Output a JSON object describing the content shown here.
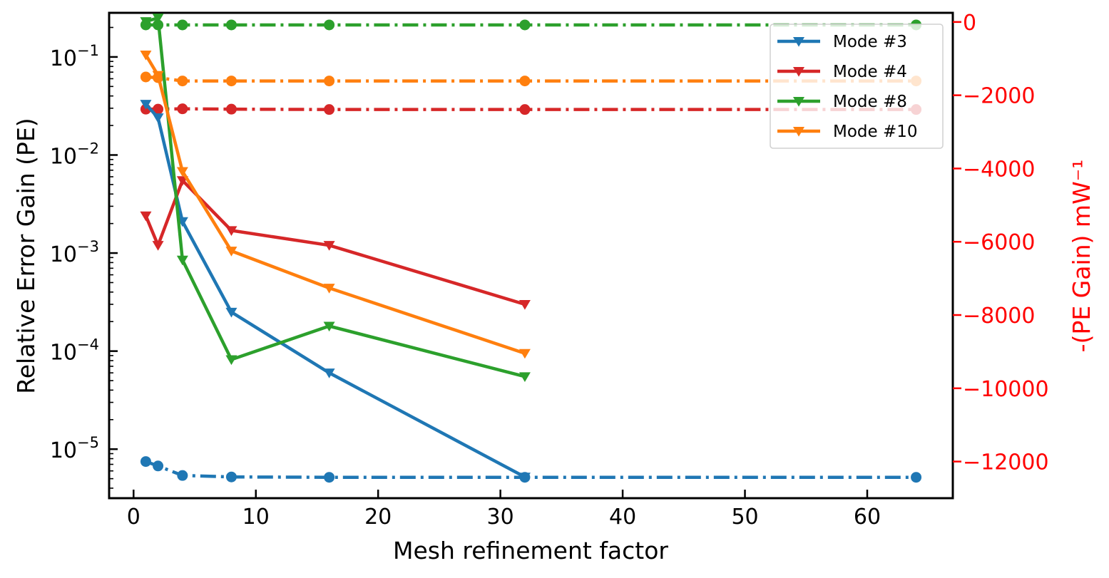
{
  "chart_data": {
    "type": "line",
    "xlabel": "Mesh refinement factor",
    "ylabel_left": "Relative Error Gain (PE)",
    "ylabel_right": "-(PE Gain)  mW⁻¹",
    "right_axis_color": "#ff0000",
    "xlim": [
      -2,
      67
    ],
    "ylim_left_log10": [
      -5.5,
      -0.55
    ],
    "ylim_right": [
      -13000,
      250
    ],
    "y_scale_left": "log",
    "x_ticks": [
      {
        "value": 0,
        "label": "0"
      },
      {
        "value": 10,
        "label": "10"
      },
      {
        "value": 20,
        "label": "20"
      },
      {
        "value": 30,
        "label": "30"
      },
      {
        "value": 40,
        "label": "40"
      },
      {
        "value": 50,
        "label": "50"
      },
      {
        "value": 60,
        "label": "60"
      }
    ],
    "y_left_ticks": [
      {
        "value": 1e-05,
        "base": "10",
        "exp": "−5"
      },
      {
        "value": 0.0001,
        "base": "10",
        "exp": "−4"
      },
      {
        "value": 0.001,
        "base": "10",
        "exp": "−3"
      },
      {
        "value": 0.01,
        "base": "10",
        "exp": "−2"
      },
      {
        "value": 0.1,
        "base": "10",
        "exp": "−1"
      }
    ],
    "y_right_ticks": [
      {
        "value": 0,
        "label": "0"
      },
      {
        "value": -2000,
        "label": "−2000"
      },
      {
        "value": -4000,
        "label": "−4000"
      },
      {
        "value": -6000,
        "label": "−6000"
      },
      {
        "value": -8000,
        "label": "−8000"
      },
      {
        "value": -10000,
        "label": "−10000"
      },
      {
        "value": -12000,
        "label": "−12000"
      }
    ],
    "legend_position": "top-right",
    "series": [
      {
        "name": "Mode #3",
        "color": "#1f77b4",
        "x": [
          1,
          2,
          4,
          8,
          16,
          32
        ],
        "relative_error": [
          0.033,
          0.024,
          0.0021,
          0.00025,
          6e-05,
          5.2e-06
        ],
        "pe_gain_x": [
          1,
          2,
          4,
          8,
          16,
          32,
          64
        ],
        "pe_gain": [
          -12000,
          -12120,
          -12380,
          -12420,
          -12430,
          -12430,
          -12430
        ]
      },
      {
        "name": "Mode #4",
        "color": "#d62728",
        "x": [
          1,
          2,
          4,
          8,
          16,
          32
        ],
        "relative_error": [
          0.0024,
          0.0012,
          0.0055,
          0.0017,
          0.0012,
          0.0003
        ],
        "pe_gain_x": [
          1,
          2,
          4,
          8,
          16,
          32,
          64
        ],
        "pe_gain": [
          -2380,
          -2380,
          -2370,
          -2380,
          -2390,
          -2390,
          -2390
        ]
      },
      {
        "name": "Mode #8",
        "color": "#2ca02c",
        "x": [
          1,
          2,
          4,
          8,
          16,
          32
        ],
        "relative_error": [
          0.23,
          0.25,
          0.00085,
          8.2e-05,
          0.00018,
          5.5e-05
        ],
        "pe_gain_x": [
          1,
          2,
          4,
          8,
          16,
          32,
          64
        ],
        "pe_gain": [
          -80,
          -80,
          -80,
          -80,
          -80,
          -80,
          -80
        ]
      },
      {
        "name": "Mode #10",
        "color": "#ff7f0e",
        "x": [
          1,
          2,
          4,
          8,
          16,
          32
        ],
        "relative_error": [
          0.105,
          0.065,
          0.0068,
          0.00105,
          0.00044,
          9.5e-05
        ],
        "pe_gain_x": [
          1,
          2,
          4,
          8,
          16,
          32,
          64
        ],
        "pe_gain": [
          -1500,
          -1520,
          -1610,
          -1610,
          -1610,
          -1610,
          -1610
        ]
      }
    ]
  }
}
